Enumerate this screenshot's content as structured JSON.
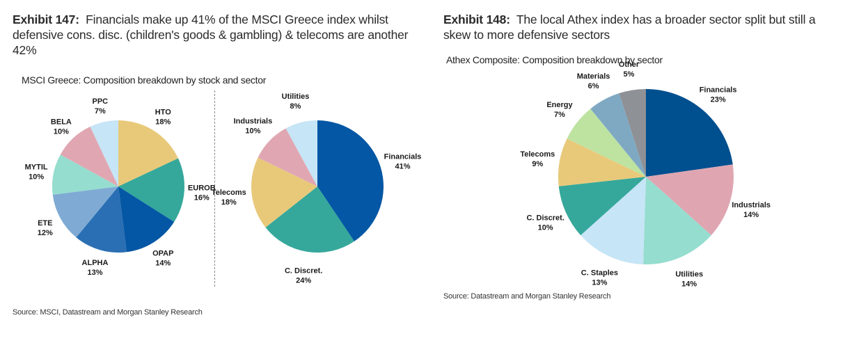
{
  "exhibits": [
    {
      "label": "Exhibit 147:",
      "title": "Financials make up 41% of the MSCI Greece index whilst defensive cons. disc. (children's goods & gambling) & telecoms are another 42%",
      "subtitle": "MSCI Greece: Composition breakdown by stock and sector",
      "source": "Source: MSCI, Datastream and Morgan Stanley Research"
    },
    {
      "label": "Exhibit 148:",
      "title": "The local Athex index has a broader sector split but still a skew to more defensive sectors",
      "subtitle": "Athex Composite: Composition breakdown by sector",
      "source": "Source: Datastream and Morgan Stanley Research"
    }
  ],
  "chart_data": [
    {
      "type": "pie",
      "title": "MSCI Greece: Composition breakdown by stock",
      "unit": "%",
      "start": "12 o'clock",
      "direction": "clockwise",
      "categories": [
        "HTO",
        "EUROB",
        "OPAP",
        "ALPHA",
        "ETE",
        "MYTIL",
        "BELA",
        "PPC"
      ],
      "values": [
        18,
        16,
        14,
        13,
        12,
        10,
        10,
        7
      ],
      "colors": [
        "#E8C97A",
        "#35A89B",
        "#0457A4",
        "#2A6FB3",
        "#7EAAD4",
        "#95DDCF",
        "#E0A7B2",
        "#C6E5F6"
      ]
    },
    {
      "type": "pie",
      "title": "MSCI Greece: Composition breakdown by sector",
      "unit": "%",
      "start": "12 o'clock",
      "direction": "clockwise",
      "categories": [
        "Financials",
        "C. Discret.",
        "Telecoms",
        "Industrials",
        "Utilities"
      ],
      "values": [
        41,
        24,
        18,
        10,
        8
      ],
      "colors": [
        "#0457A4",
        "#35A89B",
        "#E8C97A",
        "#E0A7B2",
        "#C6E5F6"
      ]
    },
    {
      "type": "pie",
      "title": "Athex Composite: Composition breakdown by sector",
      "unit": "%",
      "start": "12 o'clock",
      "direction": "clockwise",
      "categories": [
        "Financials",
        "Industrials",
        "Utilities",
        "C. Staples",
        "C. Discret.",
        "Telecoms",
        "Energy",
        "Materials",
        "Other"
      ],
      "values": [
        23,
        14,
        14,
        13,
        10,
        9,
        7,
        6,
        5
      ],
      "colors": [
        "#004F8F",
        "#DFA6B2",
        "#95DDCF",
        "#C6E5F6",
        "#35A89B",
        "#E8C97A",
        "#BEE3A1",
        "#7FA9C3",
        "#8E9196"
      ]
    }
  ]
}
